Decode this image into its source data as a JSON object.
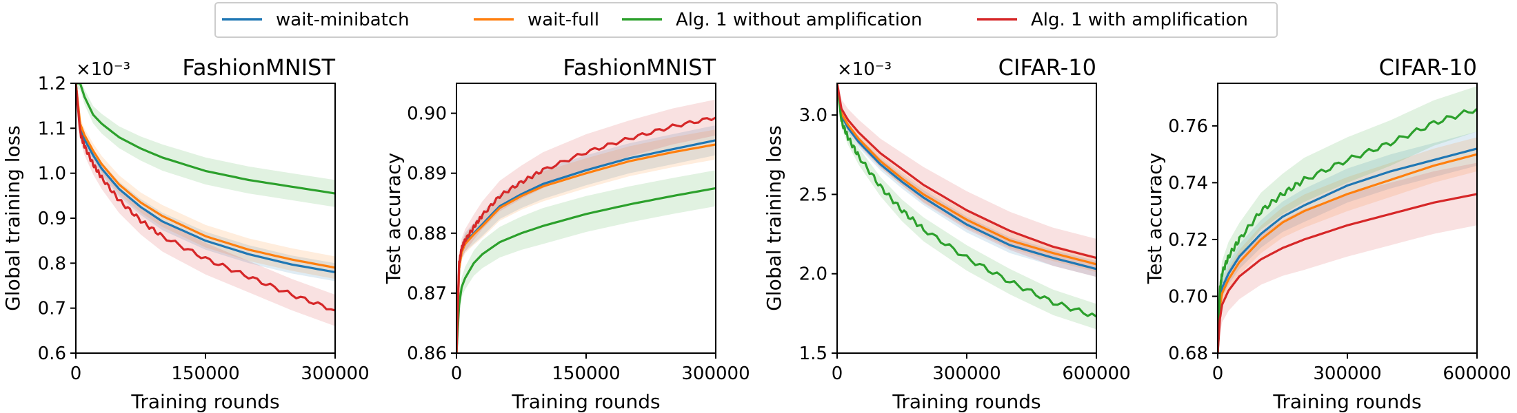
{
  "legend": [
    {
      "label": "wait-minibatch",
      "color": "#1f77b4"
    },
    {
      "label": "wait-full",
      "color": "#ff7f0e"
    },
    {
      "label": "Alg. 1 without amplification",
      "color": "#2ca02c"
    },
    {
      "label": "Alg. 1 with amplification",
      "color": "#d62728"
    }
  ],
  "chart_data": [
    {
      "type": "line",
      "title": "FashionMNIST",
      "xlabel": "Training rounds",
      "ylabel": "Global training loss",
      "offset_label": "×10⁻³",
      "xlim": [
        0,
        300000
      ],
      "ylim": [
        0.6,
        1.2
      ],
      "xticks": [
        0,
        150000,
        300000
      ],
      "yticks": [
        0.6,
        0.7,
        0.8,
        0.9,
        1.0,
        1.1,
        1.2
      ],
      "ytick_labels": [
        "0.6",
        "0.7",
        "0.8",
        "0.9",
        "1.0",
        "1.1",
        "1.2"
      ],
      "x": [
        0,
        5000,
        10000,
        20000,
        30000,
        50000,
        75000,
        100000,
        150000,
        200000,
        250000,
        300000
      ],
      "series": [
        {
          "name": "wait-minibatch",
          "values": [
            1.2,
            1.1,
            1.075,
            1.04,
            1.01,
            0.965,
            0.925,
            0.893,
            0.85,
            0.82,
            0.797,
            0.78
          ],
          "band": 0.02
        },
        {
          "name": "wait-full",
          "values": [
            1.2,
            1.11,
            1.085,
            1.05,
            1.02,
            0.975,
            0.935,
            0.905,
            0.86,
            0.83,
            0.808,
            0.79
          ],
          "band": 0.025
        },
        {
          "name": "Alg. 1 without amplification",
          "values": [
            1.2,
            1.2,
            1.17,
            1.13,
            1.11,
            1.08,
            1.055,
            1.035,
            1.005,
            0.985,
            0.97,
            0.955
          ],
          "band": 0.03
        },
        {
          "name": "Alg. 1 with amplification",
          "values": [
            1.2,
            1.09,
            1.06,
            1.02,
            0.99,
            0.94,
            0.895,
            0.86,
            0.81,
            0.77,
            0.73,
            0.695
          ],
          "band": 0.035,
          "wiggle": 0.006
        }
      ]
    },
    {
      "type": "line",
      "title": "FashionMNIST",
      "xlabel": "Training rounds",
      "ylabel": "Test accuracy",
      "offset_label": "",
      "xlim": [
        0,
        300000
      ],
      "ylim": [
        0.86,
        0.905
      ],
      "xticks": [
        0,
        150000,
        300000
      ],
      "yticks": [
        0.86,
        0.87,
        0.88,
        0.89,
        0.9
      ],
      "ytick_labels": [
        "0.86",
        "0.87",
        "0.88",
        "0.89",
        "0.90"
      ],
      "x": [
        0,
        3000,
        6000,
        10000,
        20000,
        30000,
        50000,
        75000,
        100000,
        150000,
        200000,
        250000,
        300000
      ],
      "series": [
        {
          "name": "wait-minibatch",
          "values": [
            0.86,
            0.874,
            0.877,
            0.8785,
            0.88,
            0.8815,
            0.8845,
            0.8865,
            0.8882,
            0.8905,
            0.8925,
            0.894,
            0.8955
          ],
          "band": 0.0025
        },
        {
          "name": "wait-full",
          "values": [
            0.86,
            0.874,
            0.8768,
            0.8782,
            0.8798,
            0.8812,
            0.8842,
            0.8862,
            0.8878,
            0.89,
            0.892,
            0.8935,
            0.8948
          ],
          "band": 0.0025
        },
        {
          "name": "Alg. 1 without amplification",
          "values": [
            0.86,
            0.868,
            0.871,
            0.8725,
            0.875,
            0.8765,
            0.8785,
            0.88,
            0.8812,
            0.8832,
            0.8848,
            0.8862,
            0.8875
          ],
          "band": 0.003
        },
        {
          "name": "Alg. 1 with amplification",
          "values": [
            0.86,
            0.875,
            0.8775,
            0.8788,
            0.881,
            0.883,
            0.8862,
            0.8885,
            0.8905,
            0.8935,
            0.8958,
            0.8978,
            0.8993
          ],
          "band": 0.003,
          "wiggle": 0.0004
        }
      ]
    },
    {
      "type": "line",
      "title": "CIFAR-10",
      "xlabel": "Training rounds",
      "ylabel": "Global training loss",
      "offset_label": "×10⁻³",
      "xlim": [
        0,
        600000
      ],
      "ylim": [
        1.5,
        3.2
      ],
      "xticks": [
        0,
        300000,
        600000
      ],
      "yticks": [
        1.5,
        2.0,
        2.5,
        3.0
      ],
      "ytick_labels": [
        "1.5",
        "2.0",
        "2.5",
        "3.0"
      ],
      "x": [
        0,
        10000,
        25000,
        50000,
        100000,
        150000,
        200000,
        300000,
        400000,
        500000,
        600000
      ],
      "series": [
        {
          "name": "wait-minibatch",
          "values": [
            3.2,
            3.0,
            2.92,
            2.83,
            2.69,
            2.58,
            2.48,
            2.31,
            2.18,
            2.1,
            2.03
          ],
          "band": 0.05
        },
        {
          "name": "wait-full",
          "values": [
            3.2,
            3.01,
            2.94,
            2.85,
            2.71,
            2.6,
            2.5,
            2.34,
            2.21,
            2.13,
            2.06
          ],
          "band": 0.05
        },
        {
          "name": "Alg. 1 without amplification",
          "values": [
            3.2,
            2.96,
            2.86,
            2.74,
            2.55,
            2.4,
            2.28,
            2.1,
            1.95,
            1.82,
            1.73
          ],
          "band": 0.08,
          "wiggle": 0.02
        },
        {
          "name": "Alg. 1 with amplification",
          "values": [
            3.2,
            3.04,
            2.97,
            2.89,
            2.76,
            2.66,
            2.56,
            2.4,
            2.27,
            2.17,
            2.1
          ],
          "band": 0.12
        }
      ]
    },
    {
      "type": "line",
      "title": "CIFAR-10",
      "xlabel": "Training rounds",
      "ylabel": "Test accuracy",
      "offset_label": "",
      "xlim": [
        0,
        600000
      ],
      "ylim": [
        0.68,
        0.775
      ],
      "xticks": [
        0,
        300000,
        600000
      ],
      "yticks": [
        0.68,
        0.7,
        0.72,
        0.74,
        0.76
      ],
      "ytick_labels": [
        "0.68",
        "0.70",
        "0.72",
        "0.74",
        "0.76"
      ],
      "x": [
        0,
        5000,
        10000,
        25000,
        50000,
        100000,
        150000,
        200000,
        300000,
        400000,
        500000,
        600000
      ],
      "series": [
        {
          "name": "wait-minibatch",
          "values": [
            0.68,
            0.698,
            0.703,
            0.708,
            0.714,
            0.722,
            0.728,
            0.732,
            0.739,
            0.744,
            0.748,
            0.752
          ],
          "band": 0.006
        },
        {
          "name": "wait-full",
          "values": [
            0.68,
            0.696,
            0.701,
            0.706,
            0.712,
            0.72,
            0.726,
            0.73,
            0.736,
            0.741,
            0.746,
            0.75
          ],
          "band": 0.006
        },
        {
          "name": "Alg. 1 without amplification",
          "values": [
            0.68,
            0.702,
            0.708,
            0.714,
            0.72,
            0.73,
            0.736,
            0.741,
            0.748,
            0.754,
            0.761,
            0.766
          ],
          "band": 0.008,
          "wiggle": 0.0012
        },
        {
          "name": "Alg. 1 with amplification",
          "values": [
            0.68,
            0.692,
            0.697,
            0.702,
            0.707,
            0.713,
            0.717,
            0.72,
            0.725,
            0.729,
            0.733,
            0.736
          ],
          "band": 0.011
        }
      ]
    }
  ]
}
